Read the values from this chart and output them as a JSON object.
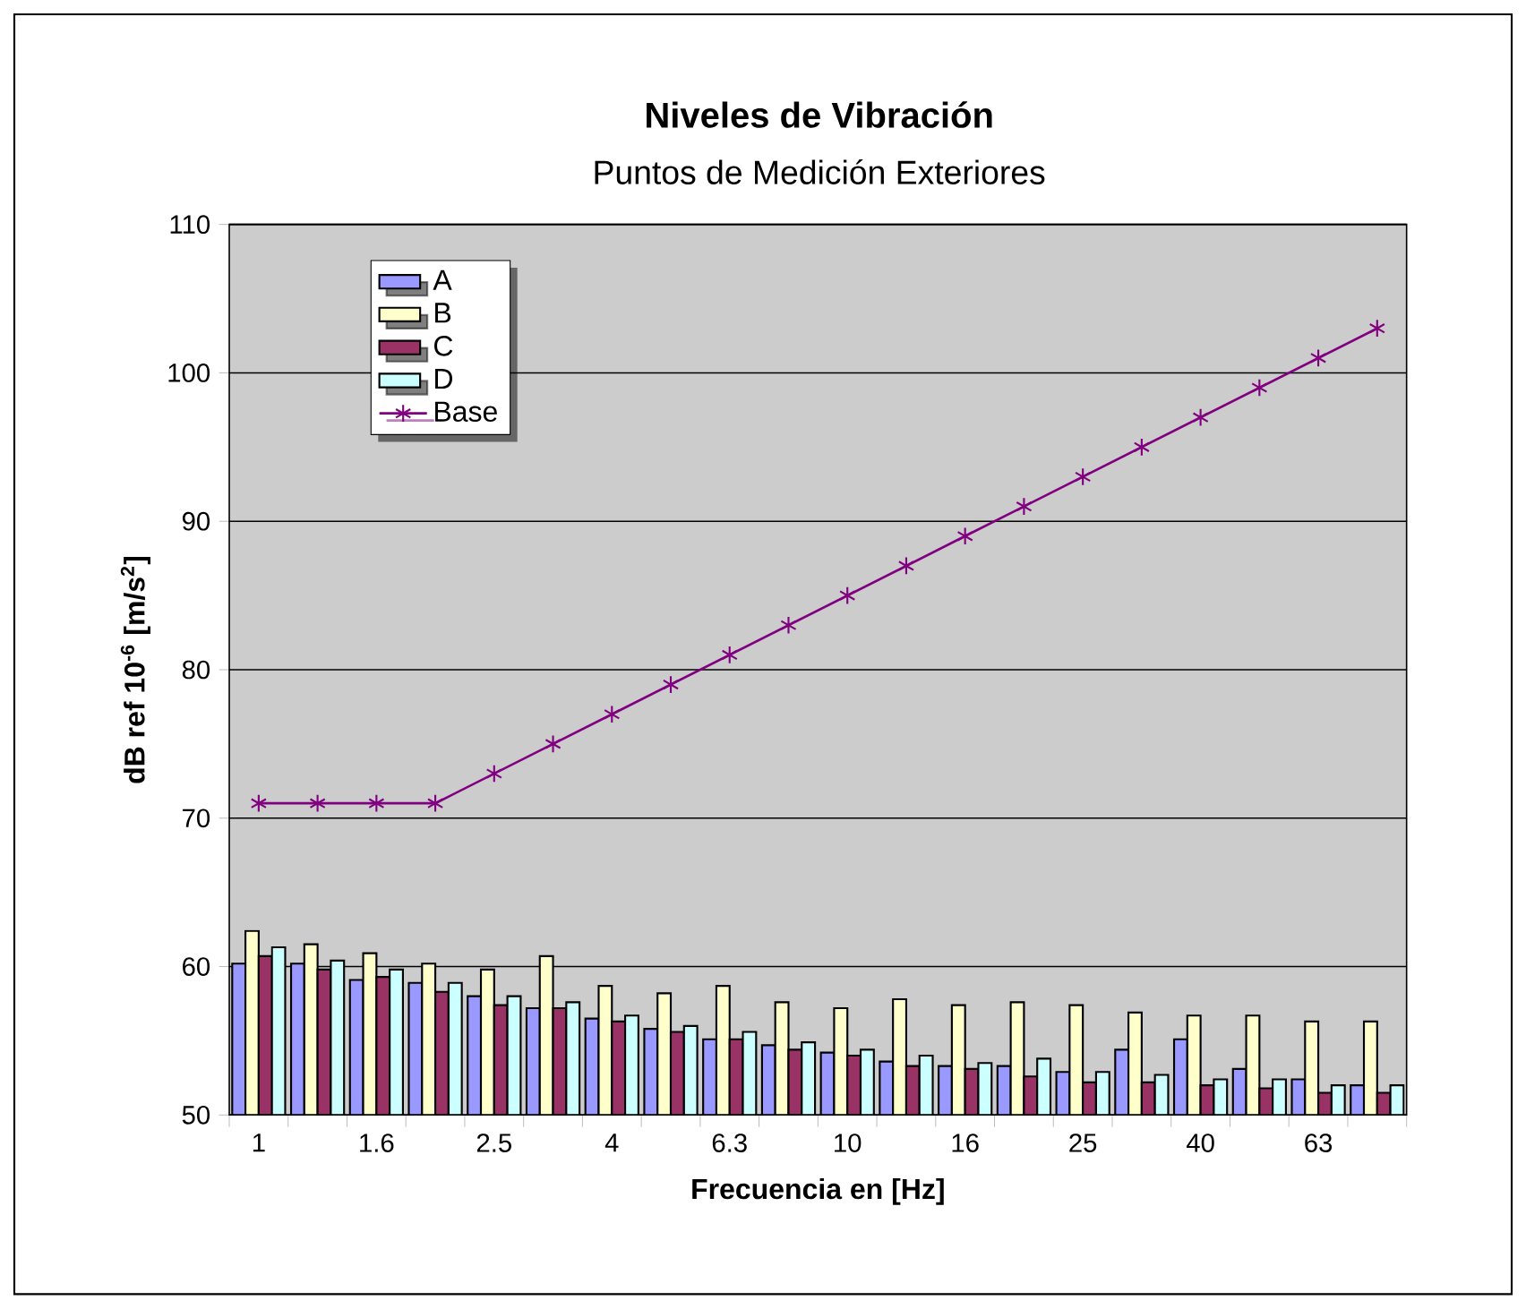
{
  "chart_data": {
    "type": "bar",
    "title": "Niveles de Vibración",
    "subtitle": "Puntos de Medición Exteriores",
    "xlabel": "Frecuencia en  [Hz]",
    "ylabel": "dB ref 10$^{-6}$ [m/s$^{2}$]",
    "categories": [
      "1",
      null,
      "1.6",
      null,
      "2.5",
      null,
      "4",
      null,
      "6.3",
      null,
      "10",
      null,
      "16",
      null,
      "25",
      null,
      "40",
      null,
      "63",
      null
    ],
    "series": [
      {
        "name": "A",
        "color": "#9999ff",
        "values": [
          60.2,
          60.2,
          59.1,
          58.9,
          58.0,
          57.2,
          56.5,
          55.8,
          55.1,
          54.7,
          54.2,
          53.6,
          53.3,
          53.3,
          52.9,
          54.4,
          55.1,
          53.1,
          52.4,
          52.0
        ]
      },
      {
        "name": "B",
        "color": "#ffffcc",
        "values": [
          62.4,
          61.5,
          60.9,
          60.2,
          59.8,
          60.7,
          58.7,
          58.2,
          58.7,
          57.6,
          57.2,
          57.8,
          57.4,
          57.6,
          57.4,
          56.9,
          56.7,
          56.7,
          56.3,
          56.3
        ]
      },
      {
        "name": "C",
        "color": "#993366",
        "values": [
          60.7,
          59.8,
          59.3,
          58.3,
          57.4,
          57.2,
          56.3,
          55.6,
          55.1,
          54.4,
          54.0,
          53.3,
          53.1,
          52.6,
          52.2,
          52.2,
          52.0,
          51.8,
          51.5,
          51.5
        ]
      },
      {
        "name": "D",
        "color": "#ccffff",
        "values": [
          61.3,
          60.4,
          59.8,
          58.9,
          58.0,
          57.6,
          56.7,
          56.0,
          55.6,
          54.9,
          54.4,
          54.0,
          53.5,
          53.8,
          52.9,
          52.7,
          52.4,
          52.4,
          52.0,
          52.0
        ]
      },
      {
        "name": "Base",
        "type": "line",
        "marker": "cross",
        "color": "#800080",
        "values": [
          71,
          71,
          71,
          71,
          73,
          75,
          77,
          79,
          81,
          83,
          85,
          87,
          89,
          91,
          93,
          95,
          97,
          99,
          101,
          103
        ]
      }
    ],
    "ylim": [
      50,
      110
    ],
    "yticks": [
      50,
      60,
      70,
      80,
      90,
      100,
      110
    ],
    "grid": "y",
    "legend": "top left"
  }
}
